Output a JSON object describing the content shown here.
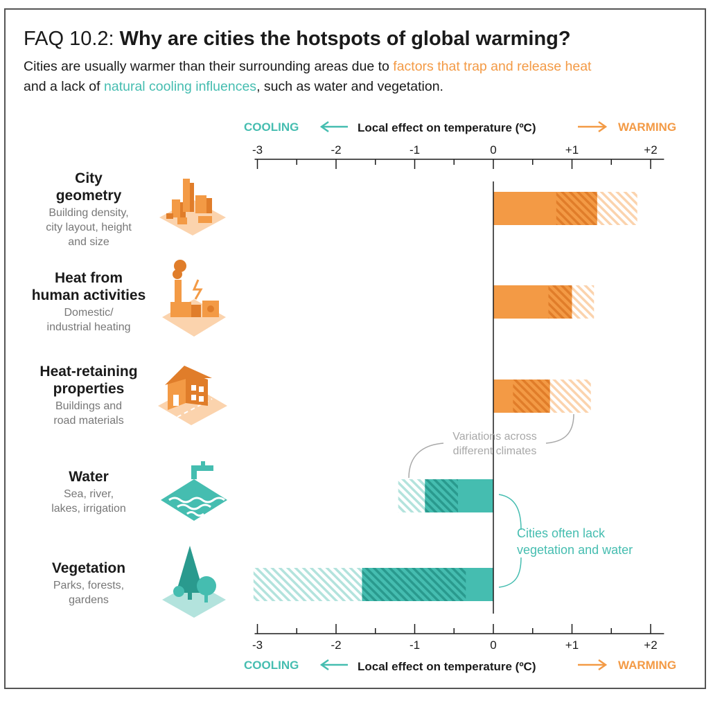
{
  "header": {
    "title_prefix": "FAQ 10.2:",
    "title_main": "Why are cities the hotspots of global warming?",
    "subtitle_part1": "Cities are usually warmer than their surrounding areas due to ",
    "subtitle_highlight1": "factors that trap and release heat",
    "subtitle_part2": "and a lack of ",
    "subtitle_highlight2": "natural cooling influences",
    "subtitle_part3": ", such as water and vegetation."
  },
  "axis": {
    "cooling_label": "COOLING",
    "warming_label": "WARMING",
    "title": "Local effect on temperature (ºC)",
    "top_tick_labels": [
      "-3",
      "-2",
      "-1",
      "0",
      "+1",
      "+2"
    ],
    "bottom_tick_labels": [
      "-3",
      "-2",
      "-1",
      "0",
      "+1",
      "+2"
    ]
  },
  "annotations": {
    "variations": [
      "Variations across",
      "different climates"
    ],
    "lack": [
      "Cities often lack",
      "vegetation and water"
    ]
  },
  "categories": [
    {
      "name_lines": [
        "City",
        "geometry"
      ],
      "desc_lines": [
        "Building density,",
        "city layout, height",
        "and size"
      ],
      "icon": "city-buildings-icon"
    },
    {
      "name_lines": [
        "Heat from",
        "human activities"
      ],
      "desc_lines": [
        "Domestic/",
        "industrial heating"
      ],
      "icon": "factory-heat-icon"
    },
    {
      "name_lines": [
        "Heat-retaining",
        "properties"
      ],
      "desc_lines": [
        "Buildings and",
        "road materials"
      ],
      "icon": "house-road-icon"
    },
    {
      "name_lines": [
        "Water"
      ],
      "desc_lines": [
        "Sea, river,",
        "lakes, irrigation"
      ],
      "icon": "water-tap-icon"
    },
    {
      "name_lines": [
        "Vegetation"
      ],
      "desc_lines": [
        "Parks, forests,",
        "gardens"
      ],
      "icon": "trees-icon"
    }
  ],
  "colors": {
    "warming": "#f39a45",
    "warming_light": "#fbd3ad",
    "warming_dark": "#e07d2a",
    "cooling": "#45bdb0",
    "cooling_light": "#b3e3dd",
    "cooling_dark": "#2a9a8e",
    "axis": "#1a1a1a",
    "annotation": "#a8a8a8"
  },
  "chart_data": {
    "type": "bar",
    "orientation": "horizontal",
    "categories": [
      "City geometry",
      "Heat from human activities",
      "Heat-retaining properties",
      "Water",
      "Vegetation"
    ],
    "xlim": [
      -3,
      2.1
    ],
    "x_ticks": [
      -3,
      -2,
      -1,
      0,
      1,
      2
    ],
    "series": [
      {
        "name": "solid",
        "values": [
          0.8,
          0.7,
          0.25,
          -0.45,
          -0.35
        ]
      },
      {
        "name": "darker hatched",
        "values": [
          1.32,
          1.0,
          0.72,
          -0.87,
          -1.67
        ]
      },
      {
        "name": "light hatched",
        "values": [
          1.83,
          1.28,
          1.24,
          -1.21,
          -3.05
        ]
      }
    ]
  }
}
